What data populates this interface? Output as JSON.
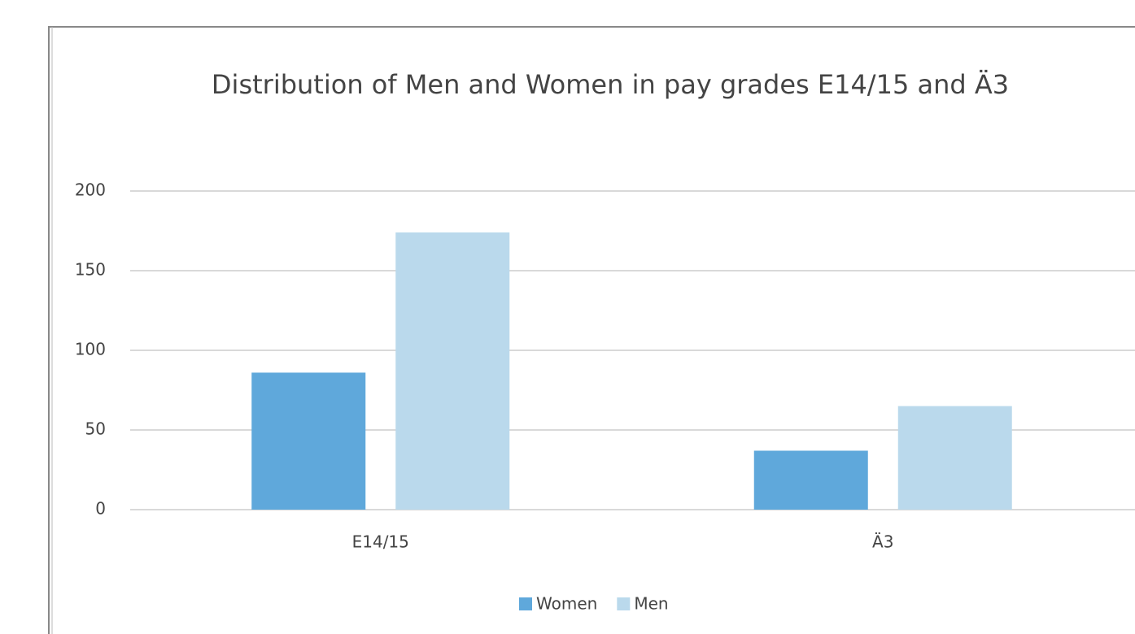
{
  "chart_data": {
    "type": "bar",
    "title": "Distribution of Men and Women in pay grades E14/15 and Ä3",
    "categories": [
      "E14/15",
      "Ä3"
    ],
    "series": [
      {
        "name": "Women",
        "color": "#5fa8db",
        "values": [
          86,
          37
        ]
      },
      {
        "name": "Men",
        "color": "#bad9ec",
        "values": [
          174,
          65
        ]
      }
    ],
    "ylim": [
      0,
      200
    ],
    "yticks": [
      0,
      50,
      100,
      150,
      200
    ],
    "grid": true,
    "legend": "bottom"
  }
}
